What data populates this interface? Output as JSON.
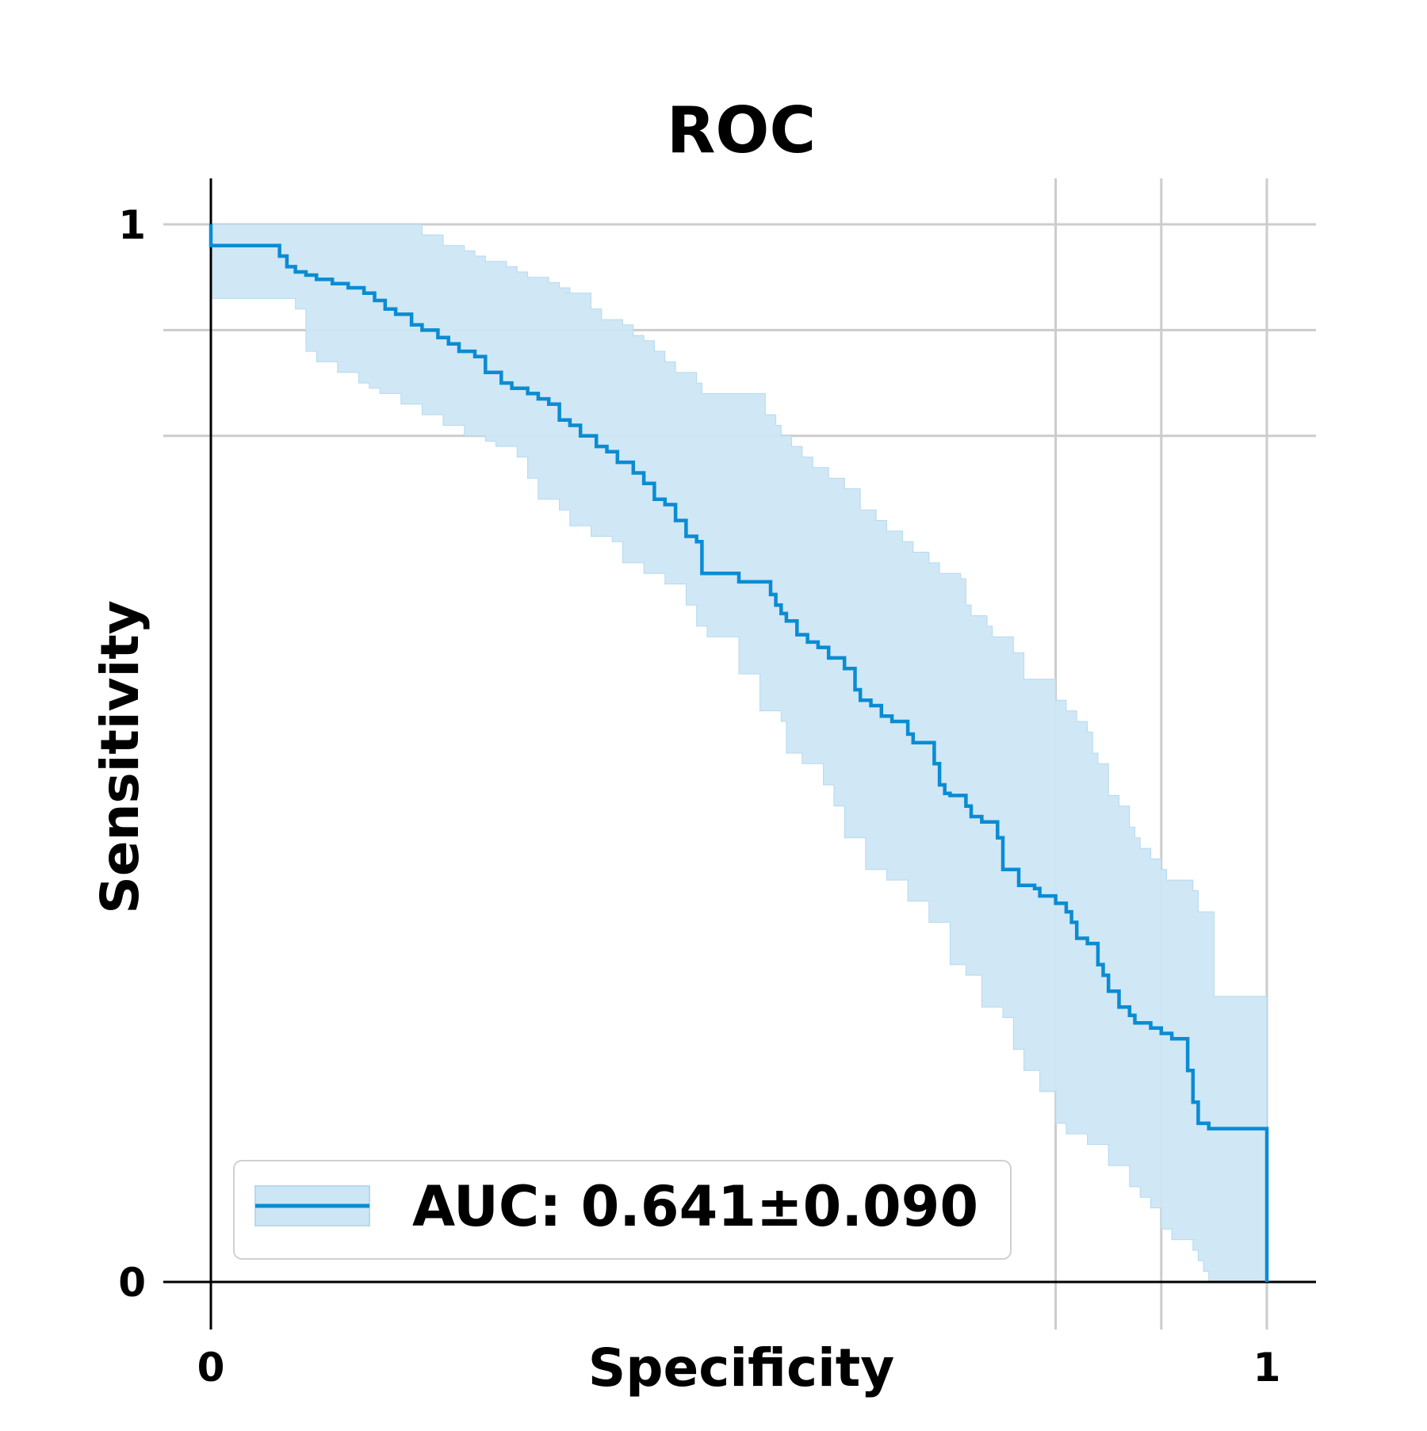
{
  "colors": {
    "line": "#0a8cd2",
    "band": "#cde6f5",
    "band_edge": "#b5d9ee",
    "grid": "#cccccc",
    "axis": "#000000"
  },
  "chart_data": {
    "type": "line",
    "title": "ROC",
    "xlabel": "Specificity",
    "ylabel": "Sensitivity",
    "xlim": [
      0,
      1
    ],
    "ylim": [
      0,
      1
    ],
    "xticks": [
      {
        "value": 0,
        "label": "0"
      },
      {
        "value": 1,
        "label": "1"
      }
    ],
    "yticks": [
      {
        "value": 0,
        "label": "0"
      },
      {
        "value": 1,
        "label": "1"
      }
    ],
    "x_gridlines": [
      0.8,
      0.9,
      1.0
    ],
    "y_gridlines": [
      0.8,
      0.9,
      1.0
    ],
    "grid": true,
    "legend_position": "bottom-left",
    "series": [
      {
        "name": "AUC: 0.641±0.090",
        "band": "confidence interval (shaded)",
        "x": [
          0.0,
          0.0,
          0.05,
          0.065,
          0.072,
          0.08,
          0.09,
          0.1,
          0.115,
          0.13,
          0.145,
          0.155,
          0.165,
          0.175,
          0.19,
          0.2,
          0.215,
          0.225,
          0.235,
          0.25,
          0.26,
          0.275,
          0.285,
          0.3,
          0.31,
          0.32,
          0.33,
          0.34,
          0.35,
          0.365,
          0.375,
          0.385,
          0.4,
          0.41,
          0.42,
          0.43,
          0.44,
          0.45,
          0.46,
          0.465,
          0.5,
          0.53,
          0.535,
          0.54,
          0.545,
          0.555,
          0.565,
          0.575,
          0.585,
          0.59,
          0.6,
          0.61,
          0.615,
          0.625,
          0.635,
          0.645,
          0.66,
          0.665,
          0.685,
          0.69,
          0.695,
          0.7,
          0.715,
          0.72,
          0.73,
          0.745,
          0.75,
          0.765,
          0.78,
          0.785,
          0.8,
          0.81,
          0.815,
          0.82,
          0.83,
          0.84,
          0.845,
          0.85,
          0.86,
          0.87,
          0.875,
          0.89,
          0.9,
          0.91,
          0.925,
          0.93,
          0.935,
          0.945,
          1.0,
          1.0
        ],
        "y": [
          1.0,
          0.98,
          0.98,
          0.97,
          0.96,
          0.955,
          0.952,
          0.948,
          0.944,
          0.94,
          0.935,
          0.928,
          0.92,
          0.915,
          0.905,
          0.9,
          0.893,
          0.887,
          0.88,
          0.875,
          0.86,
          0.85,
          0.845,
          0.84,
          0.835,
          0.83,
          0.815,
          0.81,
          0.8,
          0.79,
          0.785,
          0.775,
          0.765,
          0.755,
          0.74,
          0.735,
          0.72,
          0.705,
          0.7,
          0.67,
          0.662,
          0.65,
          0.64,
          0.632,
          0.625,
          0.612,
          0.605,
          0.6,
          0.59,
          0.59,
          0.58,
          0.56,
          0.55,
          0.545,
          0.535,
          0.53,
          0.518,
          0.51,
          0.49,
          0.47,
          0.462,
          0.46,
          0.45,
          0.44,
          0.435,
          0.42,
          0.39,
          0.375,
          0.372,
          0.365,
          0.358,
          0.35,
          0.34,
          0.325,
          0.32,
          0.3,
          0.29,
          0.275,
          0.26,
          0.252,
          0.245,
          0.24,
          0.235,
          0.23,
          0.2,
          0.17,
          0.15,
          0.145,
          0.14,
          0.0
        ]
      }
    ],
    "band_upper": {
      "x": [
        0.0,
        0.19,
        0.2,
        0.22,
        0.24,
        0.25,
        0.26,
        0.28,
        0.29,
        0.3,
        0.32,
        0.33,
        0.34,
        0.335,
        0.36,
        0.37,
        0.39,
        0.4,
        0.41,
        0.42,
        0.43,
        0.44,
        0.46,
        0.465,
        0.5,
        0.525,
        0.535,
        0.54,
        0.55,
        0.56,
        0.57,
        0.585,
        0.6,
        0.615,
        0.63,
        0.64,
        0.655,
        0.665,
        0.68,
        0.69,
        0.71,
        0.715,
        0.72,
        0.735,
        0.74,
        0.76,
        0.77,
        0.8,
        0.81,
        0.82,
        0.83,
        0.835,
        0.84,
        0.85,
        0.86,
        0.87,
        0.875,
        0.88,
        0.89,
        0.9,
        0.905,
        0.93,
        0.935,
        0.95,
        1.0
      ],
      "y": [
        1.0,
        1.0,
        0.99,
        0.98,
        0.975,
        0.97,
        0.965,
        0.96,
        0.955,
        0.95,
        0.945,
        0.94,
        0.935,
        0.935,
        0.92,
        0.91,
        0.905,
        0.895,
        0.89,
        0.88,
        0.87,
        0.86,
        0.85,
        0.84,
        0.84,
        0.82,
        0.81,
        0.8,
        0.79,
        0.78,
        0.77,
        0.76,
        0.75,
        0.73,
        0.72,
        0.71,
        0.7,
        0.69,
        0.68,
        0.67,
        0.665,
        0.64,
        0.63,
        0.62,
        0.61,
        0.595,
        0.57,
        0.55,
        0.54,
        0.53,
        0.52,
        0.5,
        0.49,
        0.46,
        0.45,
        0.43,
        0.42,
        0.41,
        0.4,
        0.39,
        0.38,
        0.37,
        0.35,
        0.27,
        0.27
      ]
    },
    "band_lower": {
      "x": [
        0.0,
        0.08,
        0.09,
        0.1,
        0.12,
        0.14,
        0.15,
        0.16,
        0.18,
        0.2,
        0.22,
        0.24,
        0.26,
        0.27,
        0.29,
        0.3,
        0.31,
        0.33,
        0.34,
        0.36,
        0.38,
        0.39,
        0.41,
        0.43,
        0.45,
        0.46,
        0.47,
        0.5,
        0.52,
        0.54,
        0.545,
        0.56,
        0.58,
        0.59,
        0.6,
        0.62,
        0.64,
        0.66,
        0.68,
        0.7,
        0.715,
        0.73,
        0.75,
        0.76,
        0.77,
        0.785,
        0.8,
        0.81,
        0.83,
        0.85,
        0.87,
        0.88,
        0.89,
        0.9,
        0.91,
        0.93,
        0.935,
        0.94,
        0.945,
        1.0
      ],
      "y": [
        0.93,
        0.92,
        0.88,
        0.87,
        0.86,
        0.85,
        0.845,
        0.84,
        0.83,
        0.82,
        0.81,
        0.8,
        0.795,
        0.79,
        0.78,
        0.76,
        0.74,
        0.73,
        0.715,
        0.705,
        0.7,
        0.68,
        0.67,
        0.66,
        0.64,
        0.62,
        0.61,
        0.575,
        0.54,
        0.53,
        0.5,
        0.49,
        0.47,
        0.45,
        0.42,
        0.39,
        0.38,
        0.36,
        0.34,
        0.3,
        0.29,
        0.26,
        0.25,
        0.22,
        0.2,
        0.18,
        0.15,
        0.14,
        0.13,
        0.11,
        0.09,
        0.08,
        0.07,
        0.05,
        0.04,
        0.03,
        0.02,
        0.01,
        0.0,
        0.0
      ]
    }
  }
}
